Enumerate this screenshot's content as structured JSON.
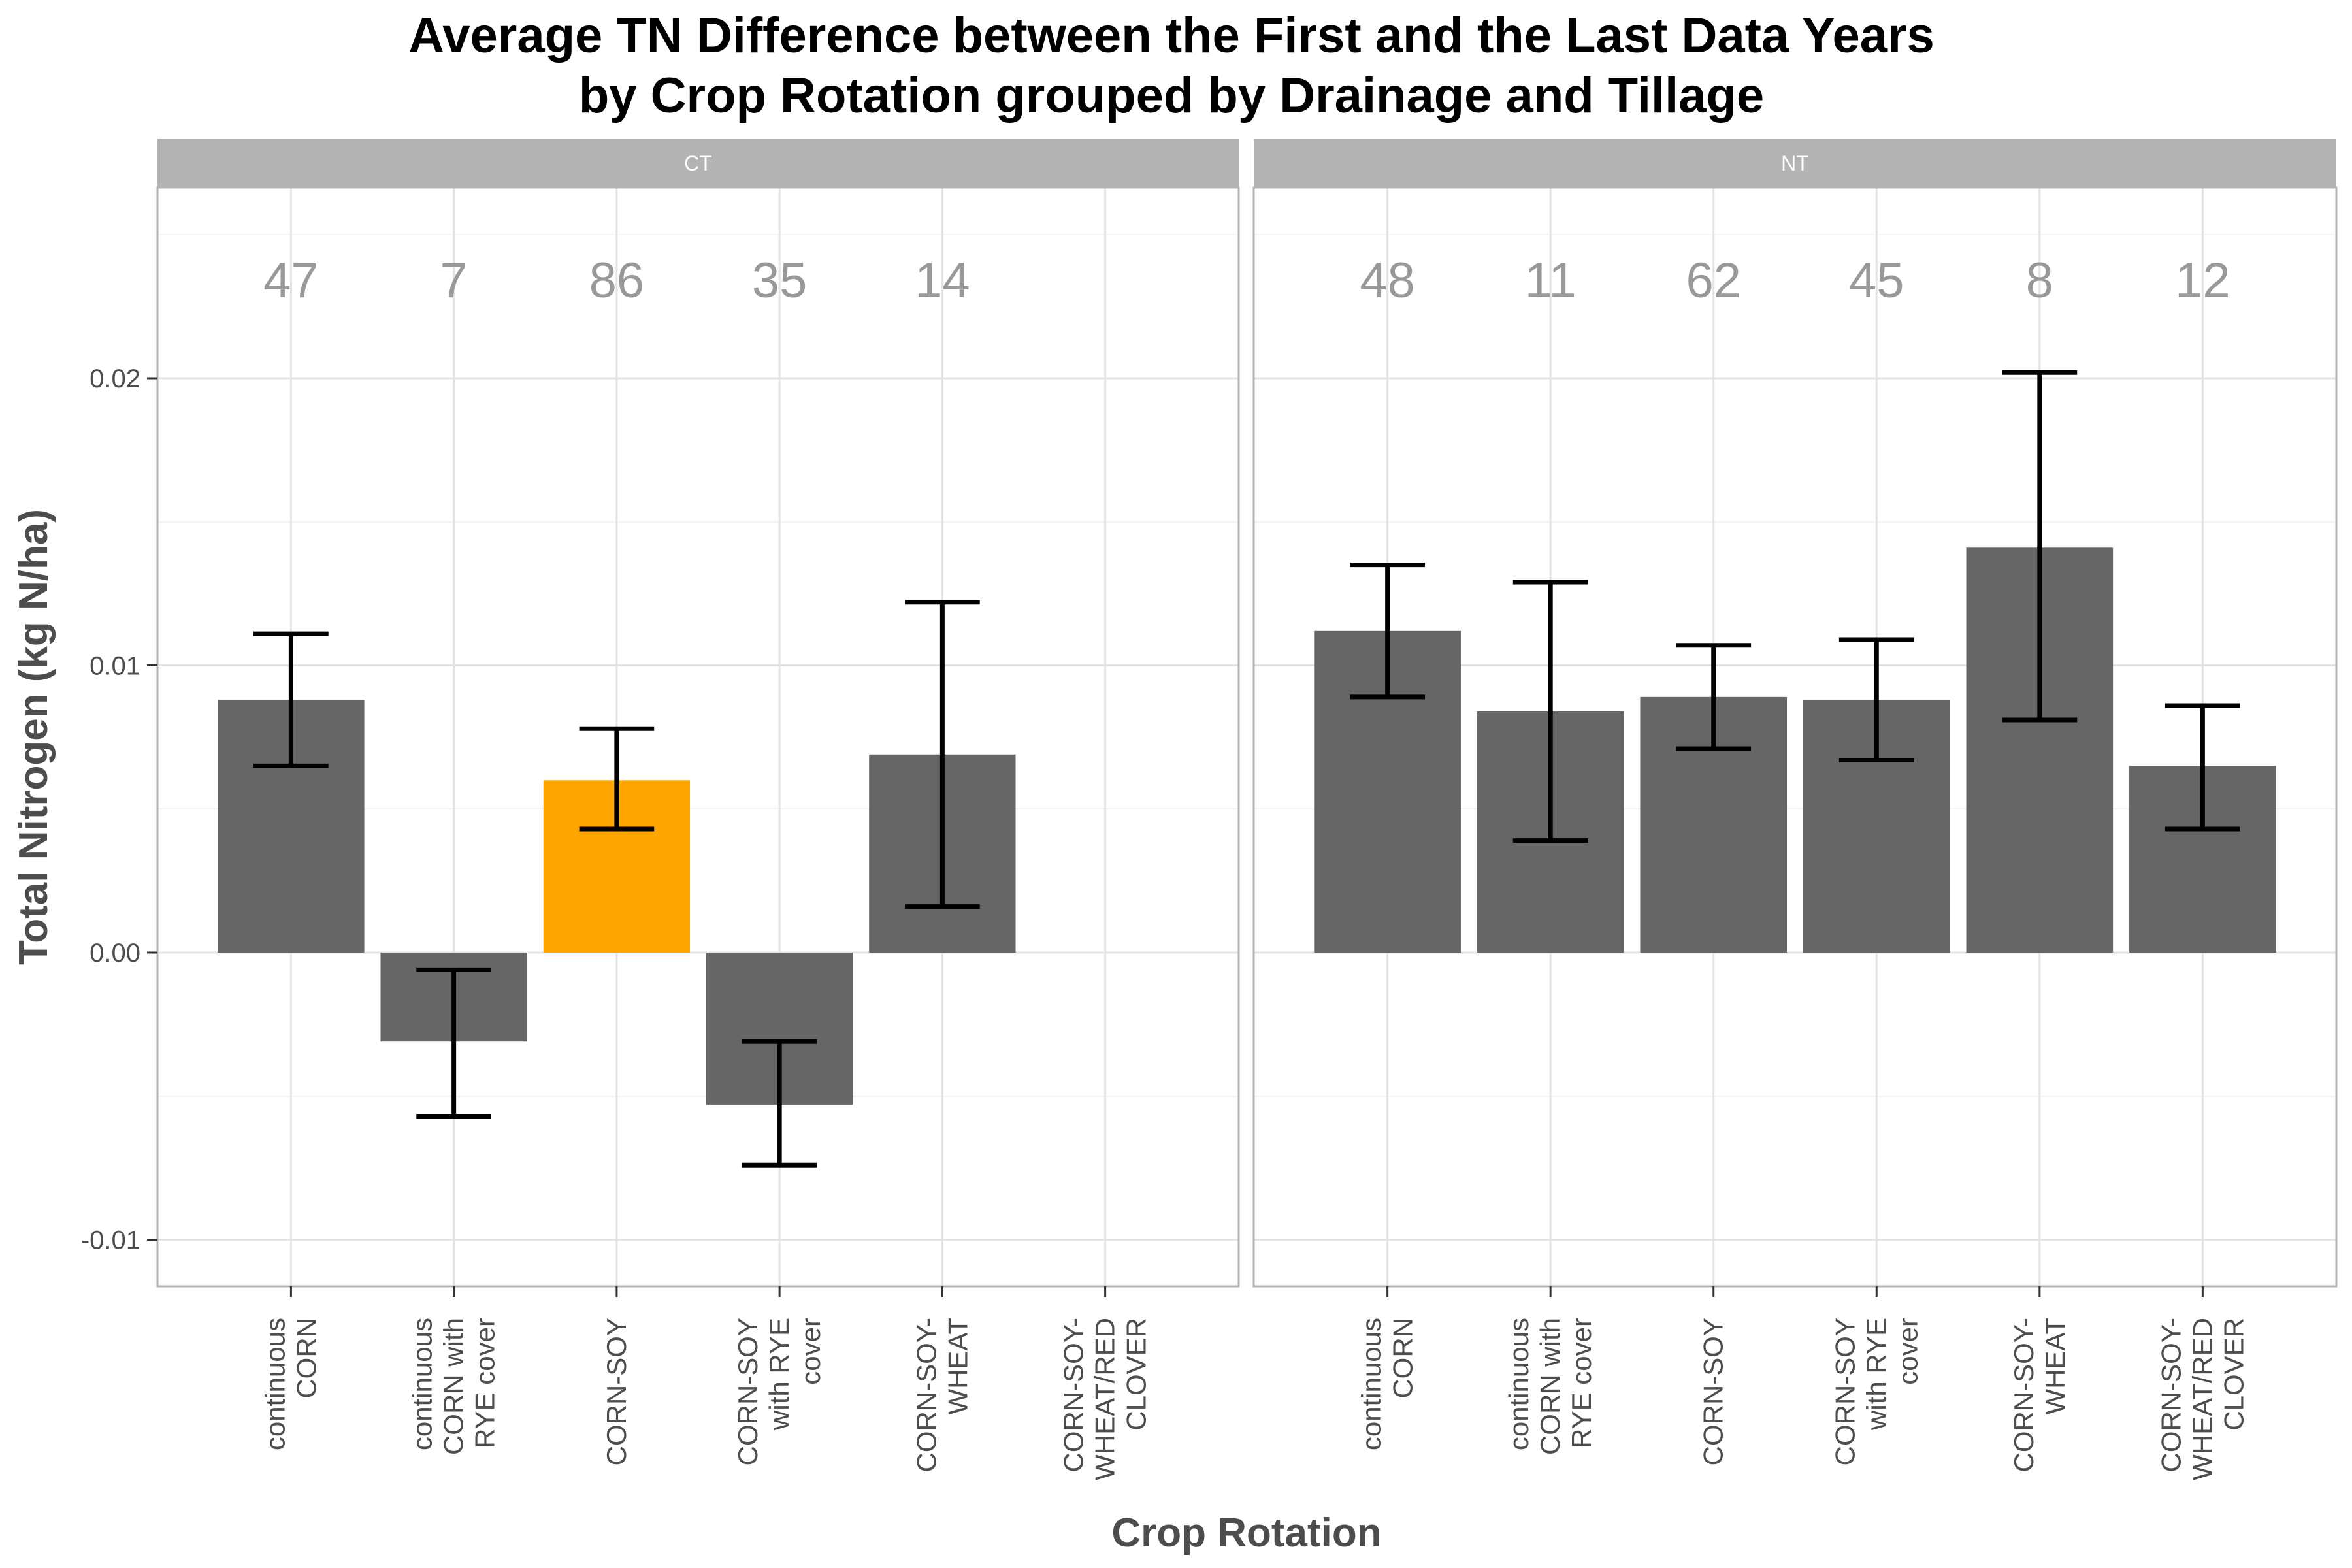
{
  "chart_data": {
    "type": "bar",
    "title": "Average TN Difference between the First and the Last Data Years\nby Crop Rotation grouped by Drainage and Tillage",
    "xlabel": "Crop Rotation",
    "ylabel": "Total Nitrogen (kg N/ha)",
    "ylim": [
      -0.0117,
      0.0263
    ],
    "yticks": [
      -0.01,
      0.0,
      0.01,
      0.02
    ],
    "ytick_labels": [
      "-0.01",
      "0.00",
      "0.01",
      "0.02"
    ],
    "categories": [
      "continuous\nCORN",
      "continuous\nCORN with\nRYE cover",
      "CORN-SOY",
      "CORN-SOY\nwith RYE\ncover",
      "CORN-SOY-\nWHEAT",
      "CORN-SOY-\nWHEAT/RED\nCLOVER"
    ],
    "grid": true,
    "bar_color": "#666666",
    "highlight_color": "#FFA500",
    "strip_color": "#B3B3B3",
    "count_label_color": "#999999",
    "panels": [
      {
        "name": "CT",
        "values": [
          0.0088,
          -0.0031,
          0.006,
          -0.0053,
          0.0069,
          null
        ],
        "error_low": [
          0.0065,
          -0.0057,
          0.0043,
          -0.0074,
          0.0016,
          null
        ],
        "error_high": [
          0.0111,
          -0.0006,
          0.0078,
          -0.0031,
          0.0122,
          null
        ],
        "counts": [
          "47",
          "7",
          "86",
          "35",
          "14",
          ""
        ],
        "highlight_index": 2
      },
      {
        "name": "NT",
        "values": [
          0.0112,
          0.0084,
          0.0089,
          0.0088,
          0.0141,
          0.0065
        ],
        "error_low": [
          0.0089,
          0.0039,
          0.0071,
          0.0067,
          0.0081,
          0.0043
        ],
        "error_high": [
          0.0135,
          0.0129,
          0.0107,
          0.0109,
          0.0202,
          0.0086
        ],
        "counts": [
          "48",
          "11",
          "62",
          "45",
          "8",
          "12"
        ],
        "highlight_index": -1
      }
    ]
  }
}
